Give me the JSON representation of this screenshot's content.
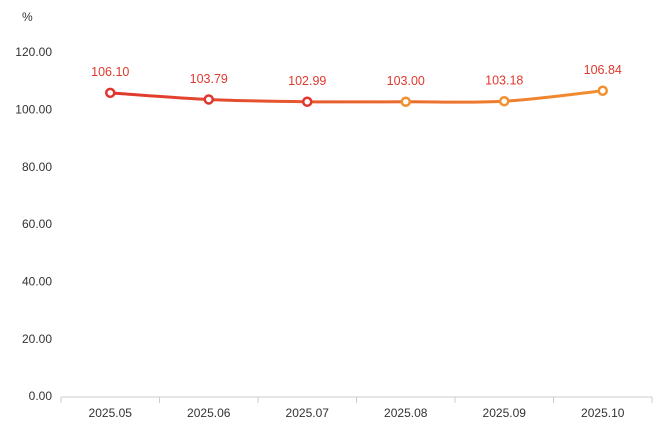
{
  "chart_data": {
    "type": "line",
    "y_axis_label": "%",
    "categories": [
      "2025.05",
      "2025.06",
      "2025.07",
      "2025.08",
      "2025.09",
      "2025.10"
    ],
    "series": [
      {
        "values": [
          106.1,
          103.79,
          102.99,
          103.0,
          103.18,
          106.84
        ],
        "value_labels": [
          "106.10",
          "103.79",
          "102.99",
          "103.00",
          "103.18",
          "106.84"
        ],
        "colors": [
          "#e0362e",
          "#f2902f"
        ],
        "smooth": true
      }
    ],
    "ylim": [
      0,
      120
    ],
    "yticks": [
      {
        "value": 0,
        "label": "0.00"
      },
      {
        "value": 20,
        "label": "20.00"
      },
      {
        "value": 40,
        "label": "40.00"
      },
      {
        "value": 60,
        "label": "60.00"
      },
      {
        "value": 80,
        "label": "80.00"
      },
      {
        "value": 100,
        "label": "100.00"
      },
      {
        "value": 120,
        "label": "120.00"
      }
    ],
    "grid": false
  }
}
